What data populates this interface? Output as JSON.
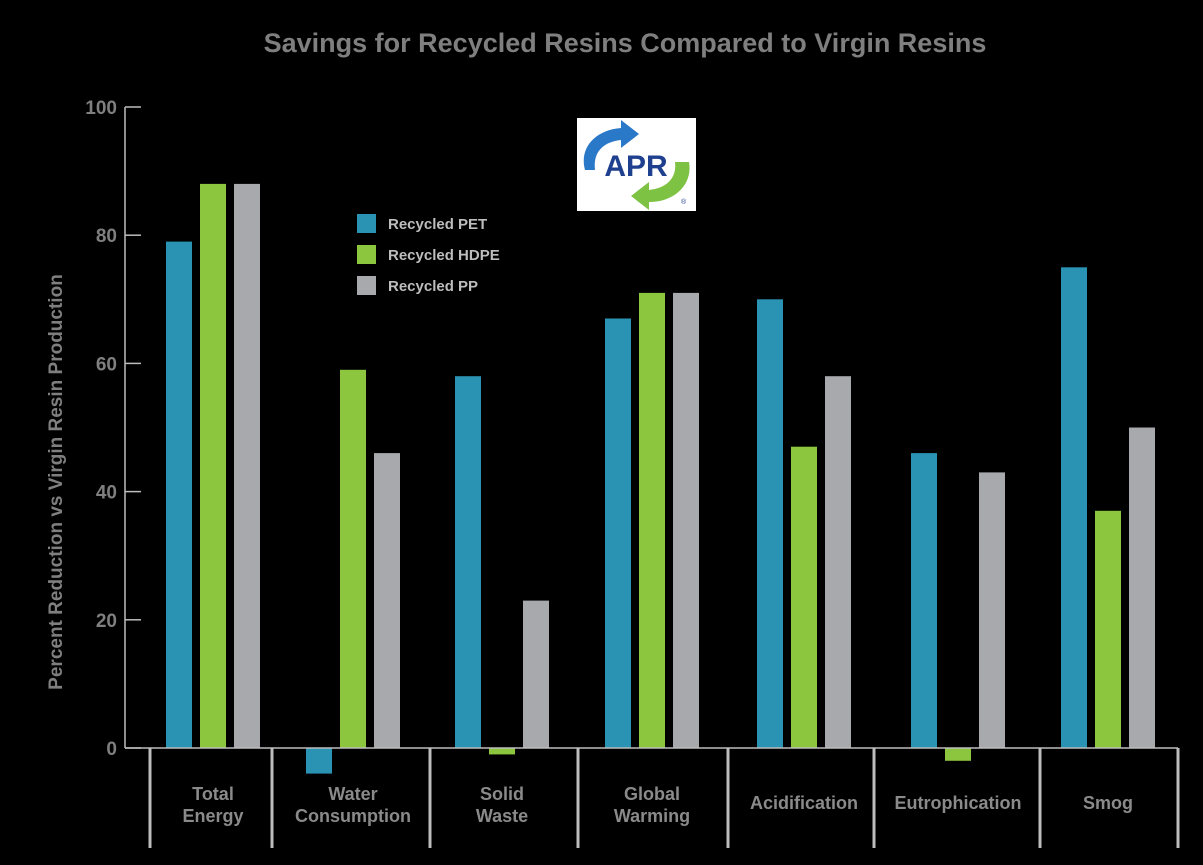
{
  "chart_data": {
    "type": "bar",
    "title": "Savings for Recycled Resins Compared to Virgin Resins",
    "xlabel": "",
    "ylabel": "Percent Reduction vs Virgin Resin Production",
    "ylim": [
      -5,
      100
    ],
    "yticks": [
      0,
      20,
      40,
      60,
      80,
      100
    ],
    "grid": false,
    "legend_position": "top-left",
    "categories": [
      [
        "Total",
        "Energy"
      ],
      [
        "Water",
        "Consumption"
      ],
      [
        "Solid",
        "Waste"
      ],
      [
        "Global",
        "Warming"
      ],
      [
        "Acidification"
      ],
      [
        "Eutrophication"
      ],
      [
        "Smog"
      ]
    ],
    "series": [
      {
        "name": "Recycled PET",
        "color": "#2a93b4",
        "values": [
          79,
          -4,
          58,
          67,
          70,
          46,
          75
        ]
      },
      {
        "name": "Recycled HDPE",
        "color": "#8cc63f",
        "values": [
          88,
          59,
          -1,
          71,
          47,
          -2,
          37
        ]
      },
      {
        "name": "Recycled PP",
        "color": "#a7a9ac",
        "values": [
          88,
          46,
          23,
          71,
          58,
          43,
          50
        ]
      }
    ]
  },
  "logo": {
    "text": "APR",
    "registered": "®",
    "colors": {
      "blue": "#2a78c8",
      "green": "#7dc242",
      "navy": "#1f3f8f"
    }
  },
  "colors": {
    "background": "#000000",
    "axis": "#bdbdbd",
    "text": "#7f7f7f"
  }
}
